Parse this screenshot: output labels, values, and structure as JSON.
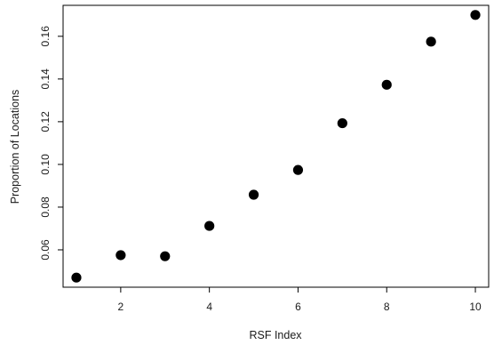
{
  "chart_data": {
    "type": "scatter",
    "xlabel": "RSF Index",
    "ylabel": "Proportion of Locations",
    "xlim": [
      0.7,
      10.3
    ],
    "ylim": [
      0.0425,
      0.1745
    ],
    "x_ticks": [
      2,
      4,
      6,
      8,
      10
    ],
    "x_tick_labels": [
      "2",
      "4",
      "6",
      "8",
      "10"
    ],
    "y_ticks": [
      0.06,
      0.08,
      0.1,
      0.12,
      0.14,
      0.16
    ],
    "y_tick_labels": [
      "0.06",
      "0.08",
      "0.10",
      "0.12",
      "0.14",
      "0.16"
    ],
    "grid": false,
    "marker_color": "#000000",
    "points": [
      {
        "x": 1,
        "y": 0.047
      },
      {
        "x": 2,
        "y": 0.0575
      },
      {
        "x": 3,
        "y": 0.057
      },
      {
        "x": 4,
        "y": 0.0712
      },
      {
        "x": 5,
        "y": 0.0858
      },
      {
        "x": 6,
        "y": 0.0974
      },
      {
        "x": 7,
        "y": 0.1193
      },
      {
        "x": 8,
        "y": 0.1373
      },
      {
        "x": 9,
        "y": 0.1575
      },
      {
        "x": 10,
        "y": 0.17
      }
    ]
  }
}
